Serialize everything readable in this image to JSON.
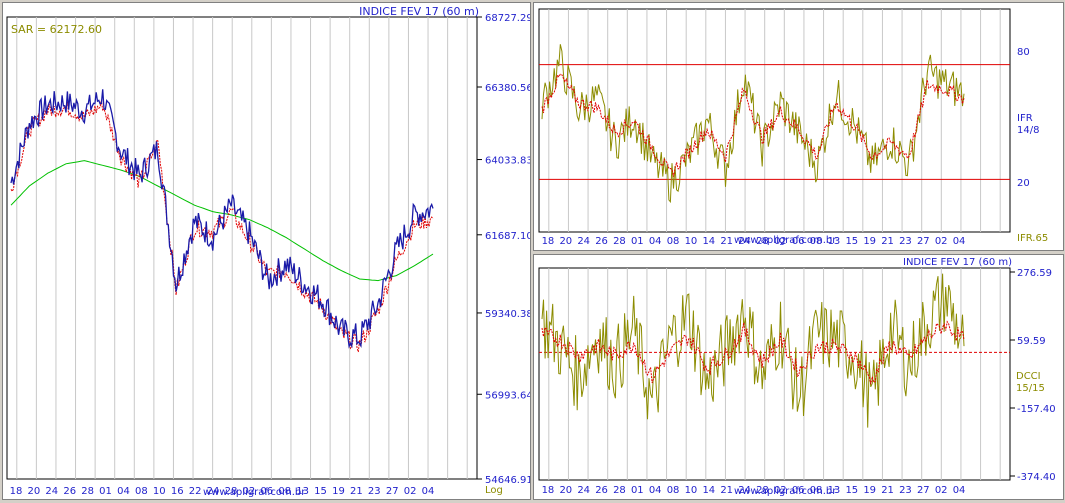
{
  "colors": {
    "price": "#1a1aa8",
    "sar": "#e00000",
    "ma": "#00c000",
    "osc": "#8c8c00",
    "signal": "#e00000",
    "axis_text": "#2222cc",
    "grid": "#c8c8c8",
    "frame": "#000000",
    "label_olive": "#8c8c00"
  },
  "main_chart": {
    "title": "INDICE FEV 17 (60 m)",
    "sar_label": "SAR = 62172.60",
    "scale_label": "Log",
    "watermark": "www.apligraf.com.br",
    "y_ticks": [
      "68727.29",
      "66380.56",
      "64033.83",
      "61687.10",
      "59340.38",
      "56993.64",
      "54646.91"
    ],
    "x_ticks": [
      "18",
      "20",
      "24",
      "26",
      "28",
      "01",
      "04",
      "08",
      "10",
      "16",
      "22",
      "24",
      "28",
      "02",
      "06",
      "08",
      "13",
      "15",
      "19",
      "21",
      "23",
      "27",
      "02",
      "04"
    ]
  },
  "ifr_chart": {
    "label": "IFR",
    "params": "14/8",
    "bottom_label": "IFR.65",
    "levels": [
      "80",
      "20"
    ],
    "watermark": "www.apligraf.com.br",
    "x_ticks": [
      "18",
      "20",
      "24",
      "26",
      "28",
      "01",
      "04",
      "08",
      "10",
      "14",
      "21",
      "24",
      "28",
      "02",
      "06",
      "08",
      "13",
      "15",
      "19",
      "21",
      "23",
      "27",
      "02",
      "04"
    ]
  },
  "dcci_chart": {
    "title": "INDICE FEV 17 (60 m)",
    "label": "DCCI",
    "params": "15/15",
    "y_ticks": [
      "276.59",
      "59.59",
      "-157.40",
      "-374.40"
    ],
    "watermark": "www.apligraf.com.br",
    "x_ticks": [
      "18",
      "20",
      "24",
      "26",
      "28",
      "01",
      "04",
      "08",
      "10",
      "14",
      "21",
      "24",
      "28",
      "02",
      "06",
      "08",
      "13",
      "15",
      "19",
      "21",
      "23",
      "27",
      "02",
      "04"
    ]
  },
  "chart_data": [
    {
      "type": "line",
      "title": "INDICE FEV 17 (60 m)",
      "scale": "log",
      "ylim": [
        54646.91,
        68727.29
      ],
      "x": [
        "18",
        "20",
        "24",
        "26",
        "28",
        "01",
        "04",
        "08",
        "10",
        "16",
        "22",
        "24",
        "28",
        "02",
        "06",
        "08",
        "13",
        "15",
        "19",
        "21",
        "23",
        "27",
        "02",
        "04"
      ],
      "series": [
        {
          "values": [
            63300,
            65200,
            65800,
            65900,
            65600,
            66100,
            64300,
            63500,
            64400,
            60200,
            62100,
            61600,
            62600,
            61700,
            60300,
            60800,
            60200,
            59700,
            58800,
            58600,
            59600,
            61200,
            62300,
            62500
          ]
        },
        {
          "name": "SAR = 62172.60",
          "values": [
            63100,
            65000,
            65600,
            65700,
            65400,
            65800,
            64100,
            63300,
            64600,
            60000,
            61900,
            61800,
            62400,
            61500,
            60500,
            60600,
            60000,
            59500,
            58700,
            58400,
            59400,
            60900,
            62000,
            62172.6
          ]
        },
        {
          "values": [
            62600,
            63200,
            63600,
            63900,
            64000,
            63850,
            63700,
            63500,
            63200,
            62900,
            62600,
            62400,
            62300,
            62150,
            61900,
            61600,
            61250,
            60900,
            60600,
            60350,
            60300,
            60450,
            60750,
            61100
          ]
        }
      ]
    },
    {
      "type": "line",
      "levels": [
        80,
        20
      ],
      "ylim": [
        0,
        100
      ],
      "x": [
        "18",
        "20",
        "24",
        "26",
        "28",
        "01",
        "04",
        "08",
        "10",
        "14",
        "21",
        "24",
        "28",
        "02",
        "06",
        "08",
        "13",
        "15",
        "19",
        "21",
        "23",
        "27",
        "02",
        "04"
      ],
      "series": [
        {
          "values": [
            58,
            76,
            55,
            60,
            40,
            52,
            32,
            22,
            34,
            50,
            28,
            70,
            38,
            58,
            44,
            30,
            62,
            48,
            30,
            42,
            30,
            72,
            66,
            62
          ]
        },
        {
          "values": [
            55,
            70,
            58,
            56,
            45,
            50,
            38,
            26,
            36,
            46,
            34,
            64,
            42,
            54,
            46,
            34,
            58,
            48,
            34,
            40,
            34,
            66,
            64,
            60
          ]
        }
      ]
    },
    {
      "type": "line",
      "ylim": [
        -374.4,
        276.59
      ],
      "x": [
        "18",
        "20",
        "24",
        "26",
        "28",
        "01",
        "04",
        "08",
        "10",
        "14",
        "21",
        "24",
        "28",
        "02",
        "06",
        "08",
        "13",
        "15",
        "19",
        "21",
        "23",
        "27",
        "02",
        "04"
      ],
      "series": [
        {
          "values": [
            120,
            40,
            -60,
            80,
            -20,
            90,
            -150,
            60,
            140,
            -80,
            20,
            160,
            -60,
            100,
            -120,
            80,
            60,
            20,
            -140,
            100,
            -20,
            120,
            200,
            40
          ]
        },
        {
          "values": [
            80,
            60,
            10,
            40,
            10,
            50,
            -60,
            20,
            70,
            -30,
            10,
            90,
            -10,
            60,
            -40,
            40,
            40,
            10,
            -70,
            50,
            0,
            70,
            110,
            60
          ]
        }
      ],
      "reference_line": 20
    }
  ]
}
